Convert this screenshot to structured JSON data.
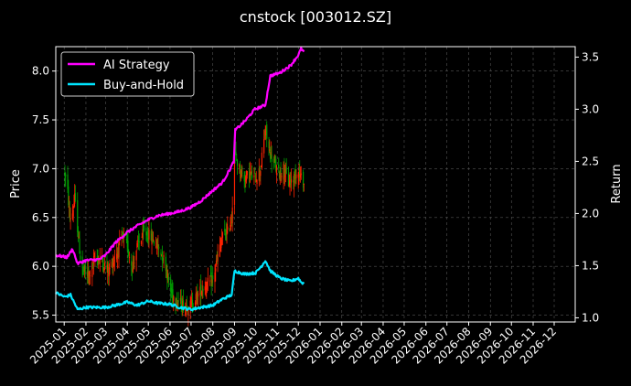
{
  "chart_data": {
    "type": "line",
    "title": "cnstock [003012.SZ]",
    "ylabel_left": "Price",
    "ylabel_right": "Return",
    "xlim": [
      "2024-12-20",
      "2026-12-31"
    ],
    "ylim_left": [
      5.43,
      8.25
    ],
    "ylim_right": [
      0.96,
      3.6
    ],
    "grid": true,
    "legend_position": "upper-left",
    "x_ticks": [
      "2025-01",
      "2025-02",
      "2025-03",
      "2025-04",
      "2025-05",
      "2025-06",
      "2025-07",
      "2025-08",
      "2025-09",
      "2025-10",
      "2025-11",
      "2025-12",
      "2026-01",
      "2026-02",
      "2026-03",
      "2026-04",
      "2026-05",
      "2026-06",
      "2026-07",
      "2026-08",
      "2026-09",
      "2026-10",
      "2026-11",
      "2026-12"
    ],
    "y_ticks_left": [
      "5.5",
      "6.0",
      "6.5",
      "7.0",
      "7.5",
      "8.0"
    ],
    "y_ticks_right": [
      "1.0",
      "1.5",
      "2.0",
      "2.5",
      "3.0",
      "3.5"
    ],
    "colors": {
      "up": "#ff2200",
      "down": "#00a000",
      "ai": "#ff00ff",
      "bh": "#00e5ff",
      "grid": "#555555"
    },
    "price_anchors": [
      [
        "2025-01-02",
        6.95
      ],
      [
        "2025-01-06",
        6.75
      ],
      [
        "2025-01-09",
        6.5
      ],
      [
        "2025-01-13",
        6.55
      ],
      [
        "2025-01-16",
        6.7
      ],
      [
        "2025-01-20",
        6.4
      ],
      [
        "2025-01-24",
        6.1
      ],
      [
        "2025-01-28",
        5.95
      ],
      [
        "2025-02-05",
        5.9
      ],
      [
        "2025-02-15",
        6.1
      ],
      [
        "2025-02-25",
        6.05
      ],
      [
        "2025-03-05",
        5.95
      ],
      [
        "2025-03-15",
        6.1
      ],
      [
        "2025-03-25",
        6.3
      ],
      [
        "2025-04-01",
        6.2
      ],
      [
        "2025-04-08",
        6.0
      ],
      [
        "2025-04-15",
        6.2
      ],
      [
        "2025-04-25",
        6.35
      ],
      [
        "2025-05-05",
        6.3
      ],
      [
        "2025-05-15",
        6.2
      ],
      [
        "2025-05-25",
        6.05
      ],
      [
        "2025-06-01",
        5.75
      ],
      [
        "2025-06-10",
        5.65
      ],
      [
        "2025-06-20",
        5.6
      ],
      [
        "2025-07-01",
        5.6
      ],
      [
        "2025-07-10",
        5.7
      ],
      [
        "2025-07-20",
        5.8
      ],
      [
        "2025-08-01",
        5.85
      ],
      [
        "2025-08-08",
        6.1
      ],
      [
        "2025-08-15",
        6.3
      ],
      [
        "2025-08-22",
        6.35
      ],
      [
        "2025-08-28",
        6.5
      ],
      [
        "2025-09-01",
        7.15
      ],
      [
        "2025-09-08",
        7.0
      ],
      [
        "2025-09-15",
        6.9
      ],
      [
        "2025-09-22",
        6.95
      ],
      [
        "2025-09-30",
        6.9
      ],
      [
        "2025-10-08",
        7.0
      ],
      [
        "2025-10-15",
        7.4
      ],
      [
        "2025-10-20",
        7.2
      ],
      [
        "2025-10-27",
        7.05
      ],
      [
        "2025-11-03",
        6.95
      ],
      [
        "2025-11-10",
        7.0
      ],
      [
        "2025-11-17",
        6.85
      ],
      [
        "2025-11-24",
        6.9
      ],
      [
        "2025-12-01",
        7.0
      ],
      [
        "2025-12-05",
        6.9
      ],
      [
        "2025-12-09",
        6.85
      ]
    ],
    "ai_strategy": {
      "name": "AI Strategy",
      "anchors": [
        [
          "2024-12-20",
          1.6
        ],
        [
          "2025-01-05",
          1.58
        ],
        [
          "2025-01-13",
          1.66
        ],
        [
          "2025-01-20",
          1.52
        ],
        [
          "2025-02-01",
          1.55
        ],
        [
          "2025-02-20",
          1.56
        ],
        [
          "2025-03-01",
          1.6
        ],
        [
          "2025-03-15",
          1.72
        ],
        [
          "2025-04-01",
          1.82
        ],
        [
          "2025-04-15",
          1.88
        ],
        [
          "2025-05-01",
          1.94
        ],
        [
          "2025-05-15",
          1.98
        ],
        [
          "2025-06-01",
          2.0
        ],
        [
          "2025-06-15",
          2.02
        ],
        [
          "2025-07-01",
          2.06
        ],
        [
          "2025-07-15",
          2.12
        ],
        [
          "2025-08-01",
          2.22
        ],
        [
          "2025-08-15",
          2.3
        ],
        [
          "2025-08-25",
          2.42
        ],
        [
          "2025-08-31",
          2.5
        ],
        [
          "2025-09-02",
          2.8
        ],
        [
          "2025-09-15",
          2.88
        ],
        [
          "2025-09-30",
          3.0
        ],
        [
          "2025-10-15",
          3.04
        ],
        [
          "2025-10-22",
          3.32
        ],
        [
          "2025-11-05",
          3.35
        ],
        [
          "2025-11-20",
          3.42
        ],
        [
          "2025-12-01",
          3.52
        ],
        [
          "2025-12-05",
          3.58
        ],
        [
          "2025-12-09",
          3.55
        ]
      ]
    },
    "buy_and_hold": {
      "name": "Buy-and-Hold",
      "anchors": [
        [
          "2024-12-20",
          1.24
        ],
        [
          "2025-01-02",
          1.2
        ],
        [
          "2025-01-10",
          1.22
        ],
        [
          "2025-01-20",
          1.08
        ],
        [
          "2025-02-01",
          1.1
        ],
        [
          "2025-03-01",
          1.1
        ],
        [
          "2025-03-15",
          1.12
        ],
        [
          "2025-04-01",
          1.15
        ],
        [
          "2025-04-15",
          1.12
        ],
        [
          "2025-05-01",
          1.16
        ],
        [
          "2025-05-15",
          1.14
        ],
        [
          "2025-06-01",
          1.13
        ],
        [
          "2025-06-15",
          1.1
        ],
        [
          "2025-07-01",
          1.08
        ],
        [
          "2025-07-15",
          1.1
        ],
        [
          "2025-08-01",
          1.12
        ],
        [
          "2025-08-15",
          1.18
        ],
        [
          "2025-08-28",
          1.22
        ],
        [
          "2025-09-01",
          1.45
        ],
        [
          "2025-09-15",
          1.42
        ],
        [
          "2025-10-01",
          1.43
        ],
        [
          "2025-10-10",
          1.5
        ],
        [
          "2025-10-15",
          1.55
        ],
        [
          "2025-10-22",
          1.45
        ],
        [
          "2025-11-05",
          1.38
        ],
        [
          "2025-11-20",
          1.35
        ],
        [
          "2025-12-01",
          1.38
        ],
        [
          "2025-12-05",
          1.34
        ],
        [
          "2025-12-09",
          1.33
        ]
      ]
    }
  }
}
